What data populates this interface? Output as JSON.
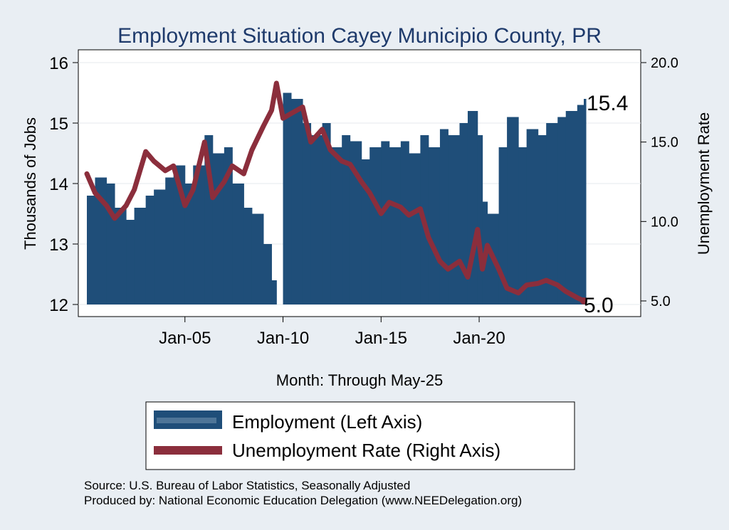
{
  "chart_data": {
    "type": "bar+line",
    "title": "Employment Situation Cayey Municipio  County, PR",
    "xlabel": "Month: Through May-25",
    "ylabel_left": "Thousands of Jobs",
    "ylabel_right": "Unemployment Rate",
    "x_range": [
      "2000-01",
      "2025-05"
    ],
    "x_ticks": [
      {
        "date": "2005-01",
        "label": "Jan-05"
      },
      {
        "date": "2010-01",
        "label": "Jan-10"
      },
      {
        "date": "2015-01",
        "label": "Jan-15"
      },
      {
        "date": "2020-01",
        "label": "Jan-20"
      }
    ],
    "ylim_left": [
      12,
      16
    ],
    "yticks_left": [
      "12",
      "13",
      "14",
      "15",
      "16"
    ],
    "ylim_right": [
      5,
      20
    ],
    "yticks_right": [
      "5.0",
      "10.0",
      "15.0",
      "20.0"
    ],
    "grid": true,
    "legend_position": "bottom",
    "series": [
      {
        "name": "Employment (Left Axis)",
        "type": "bar",
        "color": "#1f4e79",
        "points": [
          [
            "2000-01",
            13.8
          ],
          [
            "2000-06",
            14.1
          ],
          [
            "2001-01",
            14.0
          ],
          [
            "2001-06",
            13.6
          ],
          [
            "2002-01",
            13.4
          ],
          [
            "2002-06",
            13.6
          ],
          [
            "2003-01",
            13.8
          ],
          [
            "2003-06",
            13.9
          ],
          [
            "2004-01",
            14.1
          ],
          [
            "2004-06",
            14.3
          ],
          [
            "2005-01",
            14.0
          ],
          [
            "2005-06",
            14.3
          ],
          [
            "2006-01",
            14.8
          ],
          [
            "2006-06",
            14.5
          ],
          [
            "2007-01",
            14.6
          ],
          [
            "2007-06",
            14.0
          ],
          [
            "2008-01",
            13.6
          ],
          [
            "2008-06",
            13.5
          ],
          [
            "2009-01",
            13.0
          ],
          [
            "2009-06",
            12.4
          ],
          [
            "2009-09",
            12.0
          ],
          [
            "2010-01",
            15.5
          ],
          [
            "2010-06",
            15.4
          ],
          [
            "2011-01",
            15.0
          ],
          [
            "2011-06",
            14.8
          ],
          [
            "2012-01",
            15.0
          ],
          [
            "2012-06",
            14.6
          ],
          [
            "2013-01",
            14.8
          ],
          [
            "2013-06",
            14.7
          ],
          [
            "2014-01",
            14.4
          ],
          [
            "2014-06",
            14.6
          ],
          [
            "2015-01",
            14.7
          ],
          [
            "2015-06",
            14.6
          ],
          [
            "2016-01",
            14.7
          ],
          [
            "2016-06",
            14.5
          ],
          [
            "2017-01",
            14.8
          ],
          [
            "2017-06",
            14.6
          ],
          [
            "2018-01",
            14.9
          ],
          [
            "2018-06",
            14.8
          ],
          [
            "2019-01",
            15.0
          ],
          [
            "2019-06",
            15.2
          ],
          [
            "2019-12",
            14.8
          ],
          [
            "2020-03",
            13.7
          ],
          [
            "2020-06",
            13.5
          ],
          [
            "2021-01",
            14.6
          ],
          [
            "2021-06",
            15.1
          ],
          [
            "2022-01",
            14.6
          ],
          [
            "2022-06",
            14.9
          ],
          [
            "2023-01",
            14.8
          ],
          [
            "2023-06",
            15.0
          ],
          [
            "2024-01",
            15.1
          ],
          [
            "2024-06",
            15.2
          ],
          [
            "2025-01",
            15.3
          ],
          [
            "2025-05",
            15.4
          ]
        ]
      },
      {
        "name": "Unemployment Rate (Right Axis)",
        "type": "line",
        "color": "#8b2e3c",
        "points": [
          [
            "2000-01",
            13.0
          ],
          [
            "2000-06",
            11.8
          ],
          [
            "2001-01",
            11.0
          ],
          [
            "2001-06",
            10.2
          ],
          [
            "2002-01",
            11.0
          ],
          [
            "2002-06",
            12.0
          ],
          [
            "2003-01",
            14.4
          ],
          [
            "2003-06",
            13.8
          ],
          [
            "2004-01",
            13.2
          ],
          [
            "2004-06",
            13.5
          ],
          [
            "2005-01",
            11.0
          ],
          [
            "2005-06",
            12.0
          ],
          [
            "2006-01",
            15.0
          ],
          [
            "2006-06",
            11.5
          ],
          [
            "2007-01",
            12.5
          ],
          [
            "2007-06",
            13.5
          ],
          [
            "2008-01",
            13.0
          ],
          [
            "2008-06",
            14.5
          ],
          [
            "2009-01",
            16.0
          ],
          [
            "2009-06",
            17.0
          ],
          [
            "2009-09",
            18.7
          ],
          [
            "2010-01",
            16.5
          ],
          [
            "2010-06",
            16.8
          ],
          [
            "2011-01",
            17.2
          ],
          [
            "2011-06",
            15.0
          ],
          [
            "2012-01",
            15.8
          ],
          [
            "2012-06",
            14.5
          ],
          [
            "2013-01",
            13.8
          ],
          [
            "2013-06",
            13.6
          ],
          [
            "2014-01",
            12.5
          ],
          [
            "2014-06",
            11.8
          ],
          [
            "2015-01",
            10.5
          ],
          [
            "2015-06",
            11.2
          ],
          [
            "2016-01",
            10.9
          ],
          [
            "2016-06",
            10.4
          ],
          [
            "2017-01",
            10.8
          ],
          [
            "2017-06",
            9.0
          ],
          [
            "2018-01",
            7.5
          ],
          [
            "2018-06",
            7.0
          ],
          [
            "2019-01",
            7.5
          ],
          [
            "2019-06",
            6.5
          ],
          [
            "2019-12",
            9.5
          ],
          [
            "2020-03",
            7.0
          ],
          [
            "2020-06",
            8.5
          ],
          [
            "2021-01",
            7.0
          ],
          [
            "2021-06",
            5.8
          ],
          [
            "2022-01",
            5.5
          ],
          [
            "2022-06",
            6.0
          ],
          [
            "2023-01",
            6.1
          ],
          [
            "2023-06",
            6.3
          ],
          [
            "2024-01",
            6.0
          ],
          [
            "2024-06",
            5.6
          ],
          [
            "2025-01",
            5.2
          ],
          [
            "2025-05",
            5.0
          ]
        ]
      }
    ],
    "end_labels": {
      "employment": "15.4",
      "unemployment": "5.0"
    },
    "source_lines": [
      "Source: U.S. Bureau of Labor Statistics, Seasonally Adjusted",
      "Produced by: National Economic Education Delegation (www.NEEDelegation.org)"
    ]
  }
}
